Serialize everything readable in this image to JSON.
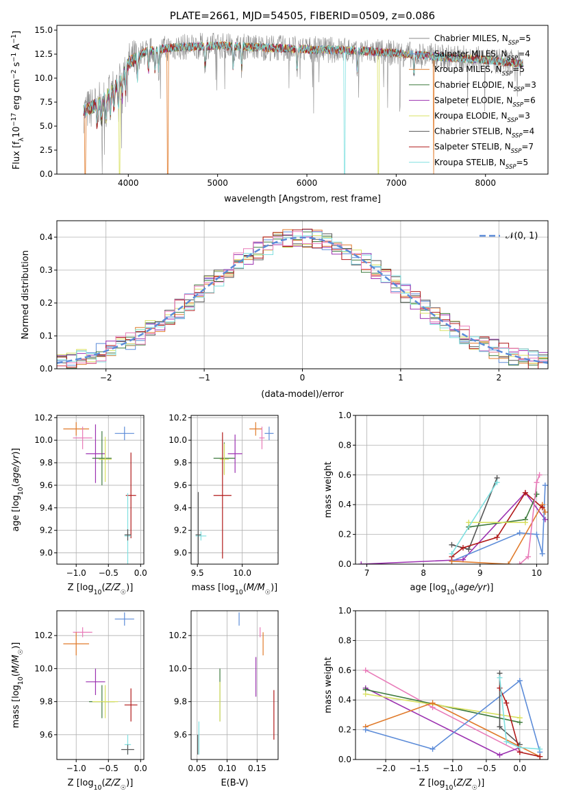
{
  "chart_data": [
    {
      "id": "spectrum",
      "type": "line",
      "title": "PLATE=2661, MJD=54505, FIBERID=0509, z=0.086",
      "xlabel": "wavelength [Angstrom, rest frame]",
      "ylabel": "Flux [f_λ 10^-17 erg cm^-2 s^-1 A^-1]",
      "xlim": [
        3200,
        8700
      ],
      "ylim": [
        0,
        15.5
      ],
      "xticks": [
        4000,
        5000,
        6000,
        7000,
        8000
      ],
      "yticks": [
        0.0,
        2.5,
        5.0,
        7.5,
        10.0,
        12.5,
        15.0
      ],
      "legend_position": "right",
      "data_continuum": [
        [
          3500,
          6.5
        ],
        [
          3700,
          7.5
        ],
        [
          3900,
          9.5
        ],
        [
          4000,
          11.5
        ],
        [
          4200,
          12.8
        ],
        [
          4500,
          13.2
        ],
        [
          5000,
          13.4
        ],
        [
          5500,
          13.2
        ],
        [
          6000,
          13.0
        ],
        [
          6500,
          12.9
        ],
        [
          7000,
          12.6
        ],
        [
          7500,
          12.2
        ],
        [
          8000,
          11.9
        ],
        [
          8400,
          11.5
        ]
      ],
      "absorption_lines": [
        3650,
        3700,
        3750,
        3800,
        3840,
        3890,
        3933,
        3969,
        4102,
        4226,
        4300,
        4340,
        4861,
        5175,
        5270,
        5890,
        6563,
        7200
      ],
      "series": [
        {
          "name": "Chabrier MILES",
          "n_ssp": "5",
          "color": "#888888",
          "role": "data",
          "drops": []
        },
        {
          "name": "Salpeter MILES",
          "n_ssp": "4",
          "color": "#6f8fd8",
          "drops": []
        },
        {
          "name": "Kroupa MILES",
          "n_ssp": "5",
          "color": "#e07a2a",
          "drops": [
            3520,
            4440,
            7420
          ]
        },
        {
          "name": "Chabrier ELODIE",
          "n_ssp": "3",
          "color": "#3d7a3d",
          "drops": []
        },
        {
          "name": "Salpeter ELODIE",
          "n_ssp": "6",
          "color": "#9b30b0",
          "drops": []
        },
        {
          "name": "Kroupa ELODIE",
          "n_ssp": "3",
          "color": "#d8e060",
          "drops": [
            3900,
            6800
          ]
        },
        {
          "name": "Chabrier STELIB",
          "n_ssp": "4",
          "color": "#555555",
          "drops": []
        },
        {
          "name": "Salpeter STELIB",
          "n_ssp": "7",
          "color": "#b01818",
          "drops": []
        },
        {
          "name": "Kroupa STELIB",
          "n_ssp": "5",
          "color": "#7fe0e0",
          "drops": [
            6420
          ]
        }
      ]
    },
    {
      "id": "residuals",
      "type": "histogram",
      "xlabel": "(data-model)/error",
      "ylabel": "Normed distribution",
      "xlim": [
        -2.5,
        2.5
      ],
      "ylim": [
        0,
        0.45
      ],
      "xticks": [
        -2,
        -1,
        0,
        1,
        2
      ],
      "yticks": [
        0.0,
        0.1,
        0.2,
        0.3,
        0.4
      ],
      "legend": "𝒩(0, 1)",
      "legend_position": "top-right",
      "bin_width": 0.1,
      "normal_color": "#5b8bd8",
      "step_colors": [
        "#5b8bd8",
        "#e07a2a",
        "#3d7a3d",
        "#9b30b0",
        "#d8e060",
        "#555555",
        "#b01818",
        "#7fe0e0",
        "#e87ab8"
      ]
    },
    {
      "id": "age-vs-Z",
      "type": "errorbar",
      "xlabel": "Z [log10(Z/Z☉)]",
      "ylabel": "age  [log10(age/yr)]",
      "xlim": [
        -1.3,
        0.05
      ],
      "ylim": [
        8.9,
        10.22
      ],
      "xticks": [
        -1.0,
        -0.5,
        0.0
      ],
      "yticks": [
        9.0,
        9.2,
        9.4,
        9.6,
        9.8,
        10.0,
        10.2
      ],
      "points": [
        {
          "x": -1.0,
          "y": 10.1,
          "xerr": 0.2,
          "yerr": 0.06,
          "color": "#e07a2a"
        },
        {
          "x": -0.9,
          "y": 10.02,
          "xerr": 0.15,
          "yerr": 0.1,
          "color": "#e87ab8"
        },
        {
          "x": -0.25,
          "y": 10.06,
          "xerr": 0.15,
          "yerr": 0.06,
          "color": "#5b8bd8"
        },
        {
          "x": -0.7,
          "y": 9.88,
          "xerr": 0.15,
          "yerr": 0.26,
          "color": "#9b30b0"
        },
        {
          "x": -0.6,
          "y": 9.84,
          "xerr": 0.15,
          "yerr": 0.24,
          "color": "#3d7a3d"
        },
        {
          "x": -0.55,
          "y": 9.83,
          "xerr": 0.1,
          "yerr": 0.2,
          "color": "#d8e060"
        },
        {
          "x": -0.15,
          "y": 9.51,
          "xerr": 0.08,
          "yerr": 0.38,
          "color": "#b01818"
        },
        {
          "x": -0.2,
          "y": 9.15,
          "xerr": 0.05,
          "yerr": 0.38,
          "color": "#7fe0e0"
        },
        {
          "x": -0.2,
          "y": 9.16,
          "xerr": 0.05,
          "yerr": 0.05,
          "color": "#555555"
        }
      ]
    },
    {
      "id": "age-vs-mass",
      "type": "errorbar",
      "xlabel": "mass [log10(M/M☉)]",
      "ylabel": "",
      "xlim": [
        9.43,
        10.4
      ],
      "ylim": [
        8.9,
        10.22
      ],
      "xticks": [
        9.5,
        10.0
      ],
      "yticks": [
        9.0,
        9.2,
        9.4,
        9.6,
        9.8,
        10.0,
        10.2
      ],
      "points": [
        {
          "x": 10.15,
          "y": 10.1,
          "xerr": 0.07,
          "yerr": 0.06,
          "color": "#e07a2a"
        },
        {
          "x": 10.22,
          "y": 10.02,
          "xerr": 0.03,
          "yerr": 0.1,
          "color": "#e87ab8"
        },
        {
          "x": 10.3,
          "y": 10.06,
          "xerr": 0.05,
          "yerr": 0.06,
          "color": "#5b8bd8"
        },
        {
          "x": 9.92,
          "y": 9.88,
          "xerr": 0.08,
          "yerr": 0.17,
          "color": "#9b30b0"
        },
        {
          "x": 9.8,
          "y": 9.84,
          "xerr": 0.12,
          "yerr": 0.14,
          "color": "#3d7a3d"
        },
        {
          "x": 9.8,
          "y": 9.83,
          "xerr": 0.05,
          "yerr": 0.14,
          "color": "#d8e060"
        },
        {
          "x": 9.78,
          "y": 9.51,
          "xerr": 0.1,
          "yerr": 0.56,
          "color": "#b01818"
        },
        {
          "x": 9.54,
          "y": 9.15,
          "xerr": 0.06,
          "yerr": 0.04,
          "color": "#7fe0e0"
        },
        {
          "x": 9.51,
          "y": 9.16,
          "xerr": 0.03,
          "yerr": 0.38,
          "color": "#555555"
        }
      ]
    },
    {
      "id": "weight-vs-age",
      "type": "line",
      "xlabel": "age  [log10(age/yr)]",
      "ylabel": "mass weight",
      "xlim": [
        6.8,
        10.2
      ],
      "ylim": [
        0,
        1.0
      ],
      "xticks": [
        7,
        8,
        9,
        10
      ],
      "yticks": [
        0.0,
        0.2,
        0.4,
        0.6,
        0.8,
        1.0
      ],
      "series": [
        {
          "color": "#9b30b0",
          "x": [
            6.9,
            8.7,
            9.8,
            10.15
          ],
          "y": [
            0.0,
            0.03,
            0.48,
            0.3
          ]
        },
        {
          "color": "#555555",
          "x": [
            8.5,
            8.8,
            9.3
          ],
          "y": [
            0.13,
            0.1,
            0.58
          ]
        },
        {
          "color": "#5b8bd8",
          "x": [
            8.5,
            9.7,
            10.0,
            10.1,
            10.15
          ],
          "y": [
            0.02,
            0.21,
            0.2,
            0.07,
            0.53
          ]
        },
        {
          "color": "#e07a2a",
          "x": [
            8.5,
            9.5,
            10.1,
            10.15
          ],
          "y": [
            0.02,
            0.0,
            0.4,
            0.35
          ]
        },
        {
          "color": "#b01818",
          "x": [
            8.5,
            8.7,
            9.3,
            9.8,
            10.1
          ],
          "y": [
            0.05,
            0.11,
            0.18,
            0.48,
            0.38
          ]
        },
        {
          "color": "#3d7a3d",
          "x": [
            8.8,
            9.8,
            10.0
          ],
          "y": [
            0.25,
            0.3,
            0.47
          ]
        },
        {
          "color": "#d8e060",
          "x": [
            8.8,
            9.8
          ],
          "y": [
            0.28,
            0.28
          ]
        },
        {
          "color": "#e87ab8",
          "x": [
            9.7,
            9.85,
            10.0,
            10.05
          ],
          "y": [
            0.0,
            0.05,
            0.55,
            0.6
          ]
        },
        {
          "color": "#7fe0e0",
          "x": [
            8.5,
            9.3
          ],
          "y": [
            0.07,
            0.55
          ]
        }
      ]
    },
    {
      "id": "mass-vs-Z",
      "type": "errorbar",
      "xlabel": "Z [log10(Z/Z☉)]",
      "ylabel": "mass [log10(M/M☉)]",
      "xlim": [
        -1.3,
        0.05
      ],
      "ylim": [
        9.45,
        10.35
      ],
      "xticks": [
        -1.0,
        -0.5,
        0.0
      ],
      "yticks": [
        9.6,
        9.8,
        10.0,
        10.2
      ],
      "points": [
        {
          "x": -0.25,
          "y": 10.3,
          "xerr": 0.15,
          "yerr": 0.04,
          "color": "#5b8bd8"
        },
        {
          "x": -0.9,
          "y": 10.22,
          "xerr": 0.15,
          "yerr": 0.03,
          "color": "#e87ab8"
        },
        {
          "x": -1.0,
          "y": 10.15,
          "xerr": 0.2,
          "yerr": 0.07,
          "color": "#e07a2a"
        },
        {
          "x": -0.7,
          "y": 9.92,
          "xerr": 0.15,
          "yerr": 0.08,
          "color": "#9b30b0"
        },
        {
          "x": -0.6,
          "y": 9.8,
          "xerr": 0.2,
          "yerr": 0.1,
          "color": "#3d7a3d"
        },
        {
          "x": -0.55,
          "y": 9.8,
          "xerr": 0.2,
          "yerr": 0.1,
          "color": "#d8e060"
        },
        {
          "x": -0.15,
          "y": 9.78,
          "xerr": 0.1,
          "yerr": 0.1,
          "color": "#b01818"
        },
        {
          "x": -0.2,
          "y": 9.54,
          "xerr": 0.05,
          "yerr": 0.06,
          "color": "#7fe0e0"
        },
        {
          "x": -0.2,
          "y": 9.51,
          "xerr": 0.1,
          "yerr": 0.03,
          "color": "#555555"
        }
      ]
    },
    {
      "id": "mass-vs-EBV",
      "type": "errorbar",
      "xlabel": "E(B-V)",
      "ylabel": "",
      "xlim": [
        0.04,
        0.185
      ],
      "ylim": [
        9.45,
        10.35
      ],
      "xticks": [
        0.05,
        0.1,
        0.15
      ],
      "yticks": [
        9.6,
        9.8,
        10.0,
        10.2
      ],
      "points": [
        {
          "x": 0.12,
          "y": 10.3,
          "xerr": 0.0,
          "yerr": 0.04,
          "color": "#5b8bd8"
        },
        {
          "x": 0.155,
          "y": 10.22,
          "xerr": 0.0,
          "yerr": 0.03,
          "color": "#e87ab8"
        },
        {
          "x": 0.16,
          "y": 10.15,
          "xerr": 0.0,
          "yerr": 0.07,
          "color": "#e07a2a"
        },
        {
          "x": 0.148,
          "y": 9.95,
          "xerr": 0.0,
          "yerr": 0.12,
          "color": "#9b30b0"
        },
        {
          "x": 0.088,
          "y": 9.84,
          "xerr": 0.0,
          "yerr": 0.16,
          "color": "#3d7a3d"
        },
        {
          "x": 0.088,
          "y": 9.8,
          "xerr": 0.0,
          "yerr": 0.12,
          "color": "#d8e060"
        },
        {
          "x": 0.178,
          "y": 9.72,
          "xerr": 0.0,
          "yerr": 0.15,
          "color": "#b01818"
        },
        {
          "x": 0.053,
          "y": 9.58,
          "xerr": 0.0,
          "yerr": 0.1,
          "color": "#7fe0e0"
        },
        {
          "x": 0.051,
          "y": 9.54,
          "xerr": 0.0,
          "yerr": 0.06,
          "color": "#555555"
        }
      ]
    },
    {
      "id": "weight-vs-Z",
      "type": "line",
      "xlabel": "Z [log10(Z/Z☉)]",
      "ylabel": "mass weight",
      "xlim": [
        -2.45,
        0.42
      ],
      "ylim": [
        0,
        1.0
      ],
      "xticks": [
        -2.0,
        -1.5,
        -1.0,
        -0.5,
        0.0
      ],
      "yticks": [
        0.0,
        0.2,
        0.4,
        0.6,
        0.8,
        1.0
      ],
      "series": [
        {
          "color": "#e87ab8",
          "x": [
            -2.3,
            -1.3,
            0.0
          ],
          "y": [
            0.6,
            0.35,
            0.05
          ]
        },
        {
          "color": "#9b30b0",
          "x": [
            -2.3,
            -0.3,
            0.0
          ],
          "y": [
            0.48,
            0.03,
            0.08
          ]
        },
        {
          "color": "#3d7a3d",
          "x": [
            -2.3,
            0.0
          ],
          "y": [
            0.47,
            0.25
          ]
        },
        {
          "color": "#d8e060",
          "x": [
            -2.3,
            0.0
          ],
          "y": [
            0.44,
            0.28
          ]
        },
        {
          "color": "#e07a2a",
          "x": [
            -2.3,
            -1.3,
            0.3
          ],
          "y": [
            0.22,
            0.38,
            0.02
          ]
        },
        {
          "color": "#5b8bd8",
          "x": [
            -2.3,
            -1.3,
            0.0,
            0.3
          ],
          "y": [
            0.2,
            0.07,
            0.53,
            0.05
          ]
        },
        {
          "color": "#555555",
          "x": [
            -0.3,
            -0.3,
            0.0
          ],
          "y": [
            0.58,
            0.22,
            0.1
          ]
        },
        {
          "color": "#b01818",
          "x": [
            -0.3,
            -0.2,
            0.0,
            0.3
          ],
          "y": [
            0.48,
            0.38,
            0.05,
            0.02
          ]
        },
        {
          "color": "#7fe0e0",
          "x": [
            -0.3,
            -0.2,
            0.0,
            0.3
          ],
          "y": [
            0.55,
            0.12,
            0.08,
            0.07
          ]
        }
      ]
    }
  ]
}
